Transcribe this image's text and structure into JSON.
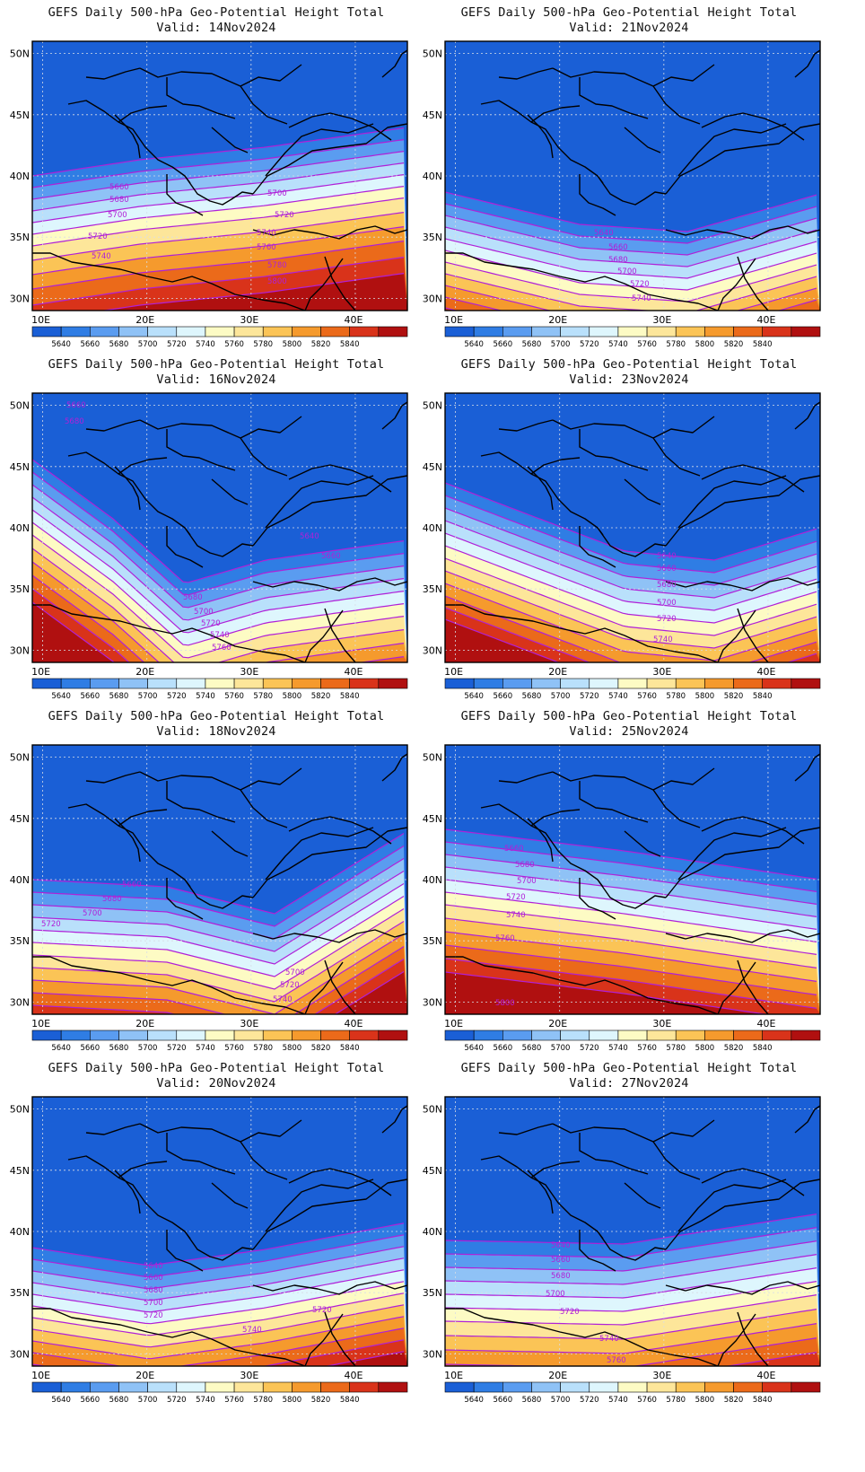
{
  "colorbar": {
    "labels": [
      "5640",
      "5660",
      "5680",
      "5700",
      "5720",
      "5740",
      "5760",
      "5780",
      "5800",
      "5820",
      "5840"
    ],
    "colors": [
      "#1a5fd6",
      "#2f7de4",
      "#5a9cf0",
      "#8fc2f6",
      "#b9e0fb",
      "#def6fd",
      "#fdfbc4",
      "#fde69a",
      "#fbc456",
      "#f59a2d",
      "#eb6a1a",
      "#d9331a",
      "#b01010"
    ]
  },
  "axes": {
    "lon_labels": [
      "10E",
      "20E",
      "30E",
      "40E"
    ],
    "lat_labels": [
      "50N",
      "45N",
      "40N",
      "35N",
      "30N"
    ]
  },
  "contour_color": "#b020d8",
  "panels": [
    {
      "title": "GEFS Daily 500-hPa Geo-Potential Height Total",
      "valid": "Valid:  14Nov2024",
      "contour_labels": [
        "5660",
        "5680",
        "5700",
        "5700",
        "5720",
        "5720",
        "5740",
        "5740",
        "5760",
        "5780",
        "5800"
      ]
    },
    {
      "title": "GEFS Daily 500-hPa Geo-Potential Height Total",
      "valid": "Valid:  21Nov2024",
      "contour_labels": [
        "5640",
        "5660",
        "5680",
        "5700",
        "5720",
        "5740"
      ]
    },
    {
      "title": "GEFS Daily 500-hPa Geo-Potential Height Total",
      "valid": "Valid:  16Nov2024",
      "contour_labels": [
        "5660",
        "5680",
        "5640",
        "5660",
        "5680",
        "5700",
        "5720",
        "5740",
        "5760"
      ]
    },
    {
      "title": "GEFS Daily 500-hPa Geo-Potential Height Total",
      "valid": "Valid:  23Nov2024",
      "contour_labels": [
        "5640",
        "5660",
        "5680",
        "5700",
        "5720",
        "5740"
      ]
    },
    {
      "title": "GEFS Daily 500-hPa Geo-Potential Height Total",
      "valid": "Valid:  18Nov2024",
      "contour_labels": [
        "5660",
        "5680",
        "5700",
        "5720",
        "5700",
        "5720",
        "5740"
      ]
    },
    {
      "title": "GEFS Daily 500-hPa Geo-Potential Height Total",
      "valid": "Valid:  25Nov2024",
      "contour_labels": [
        "5660",
        "5680",
        "5700",
        "5720",
        "5740",
        "5760",
        "5800"
      ]
    },
    {
      "title": "GEFS Daily 500-hPa Geo-Potential Height Total",
      "valid": "Valid:  20Nov2024",
      "contour_labels": [
        "5640",
        "5660",
        "5680",
        "5700",
        "5720",
        "5720",
        "5740"
      ]
    },
    {
      "title": "GEFS Daily 500-hPa Geo-Potential Height Total",
      "valid": "Valid:  27Nov2024",
      "contour_labels": [
        "5640",
        "5660",
        "5680",
        "5700",
        "5720",
        "5740",
        "5760"
      ]
    }
  ]
}
